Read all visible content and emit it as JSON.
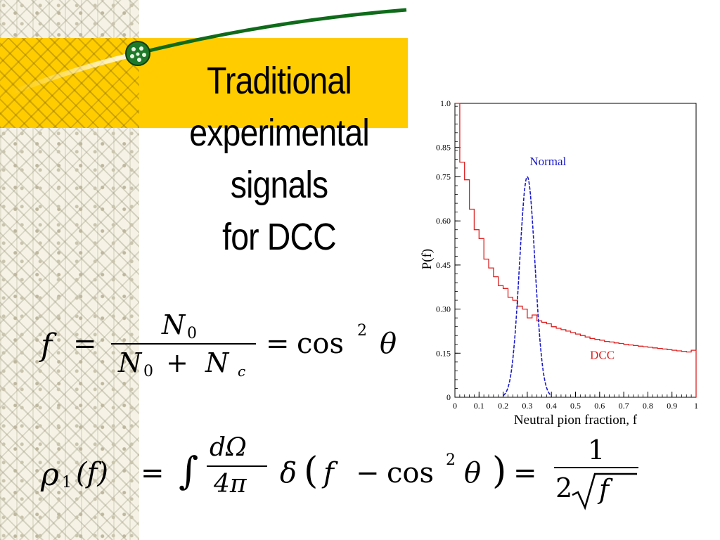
{
  "slide": {
    "title_lines": [
      "Traditional",
      "experimental",
      "signals",
      "for DCC"
    ]
  },
  "equations": {
    "eq1": {
      "lhs": "f",
      "numerator": "N",
      "numerator_sub": "0",
      "denominator_a": "N",
      "denominator_a_sub": "0",
      "denominator_plus": "+",
      "denominator_b": "N",
      "denominator_b_sub": "c",
      "rhs_func": "cos",
      "rhs_power": "2",
      "rhs_var": "θ",
      "equals": "="
    },
    "eq2": {
      "lhs_rho": "ρ",
      "lhs_sub": "1",
      "lhs_arg": "(f)",
      "equals": "=",
      "integral": "∫",
      "frac_num": "dΩ",
      "frac_den": "4π",
      "delta": "δ",
      "delta_arg_var": "f",
      "delta_arg_minus": "−",
      "delta_arg_func": "cos",
      "delta_arg_power": "2",
      "delta_arg_theta": "θ",
      "result_num": "1",
      "result_den_coeff": "2",
      "result_den_var": "f"
    }
  },
  "chart_data": {
    "type": "line",
    "xlabel": "Neutral pion fraction, f",
    "ylabel": "P(f)",
    "xlim": [
      0,
      1
    ],
    "ylim": [
      0,
      1.0
    ],
    "x_ticks": [
      "0",
      "0.1",
      "0.2",
      "0.3",
      "0.4",
      "0.5",
      "0.6",
      "0.7",
      "0.8",
      "0.9",
      "1"
    ],
    "y_ticks": [
      "0",
      "0.15",
      "0.30",
      "0.45",
      "0.60",
      "0.75",
      "0.85",
      "1.0"
    ],
    "y_tick_values": [
      0,
      0.15,
      0.3,
      0.45,
      0.6,
      0.75,
      0.85,
      1.0
    ],
    "series": [
      {
        "name": "DCC",
        "color": "#dd2222",
        "style": "step",
        "x": [
          0.0,
          0.02,
          0.04,
          0.06,
          0.08,
          0.1,
          0.12,
          0.14,
          0.16,
          0.18,
          0.2,
          0.22,
          0.24,
          0.26,
          0.28,
          0.3,
          0.32,
          0.34,
          0.36,
          0.38,
          0.4,
          0.42,
          0.44,
          0.46,
          0.48,
          0.5,
          0.52,
          0.54,
          0.56,
          0.58,
          0.6,
          0.62,
          0.64,
          0.66,
          0.68,
          0.7,
          0.72,
          0.74,
          0.76,
          0.78,
          0.8,
          0.82,
          0.84,
          0.86,
          0.88,
          0.9,
          0.92,
          0.94,
          0.96,
          0.98
        ],
        "values": [
          1.0,
          0.8,
          0.74,
          0.64,
          0.57,
          0.54,
          0.47,
          0.44,
          0.41,
          0.38,
          0.37,
          0.34,
          0.33,
          0.31,
          0.3,
          0.27,
          0.28,
          0.26,
          0.255,
          0.25,
          0.24,
          0.235,
          0.23,
          0.225,
          0.22,
          0.215,
          0.21,
          0.205,
          0.2,
          0.197,
          0.194,
          0.19,
          0.188,
          0.185,
          0.183,
          0.18,
          0.178,
          0.176,
          0.174,
          0.172,
          0.17,
          0.168,
          0.166,
          0.164,
          0.162,
          0.16,
          0.158,
          0.156,
          0.154,
          0.16
        ]
      },
      {
        "name": "Normal",
        "color": "#1a1acc",
        "style": "dashed",
        "peak_x": 0.3,
        "peak_y": 0.75,
        "sigma": 0.032
      }
    ],
    "annotations": [
      {
        "text": "Normal",
        "color": "#1a1acc",
        "x": 0.31,
        "y": 0.79
      },
      {
        "text": "DCC",
        "color": "#dd2222",
        "x": 0.56,
        "y": 0.13
      }
    ]
  },
  "colors": {
    "band": "#ffcc00",
    "arc": "#0f6b1a",
    "node": "#1e7a2a"
  }
}
